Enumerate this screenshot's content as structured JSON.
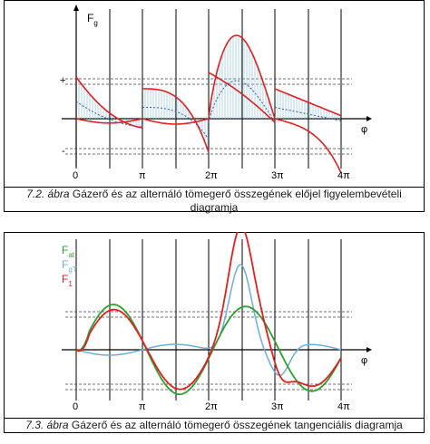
{
  "figures": [
    {
      "caption_number": "7.2.",
      "caption_word": "ábra",
      "caption_text": "Gázerő és az alternáló tömegerő összegének előjel figyelembevételi diagramja",
      "y_label_main": "F",
      "y_label_sub": "g",
      "plus_sign": "+",
      "minus_sign": "-",
      "x_label": "φ",
      "ticks": [
        "0",
        "π",
        "2π",
        "3π",
        "4π"
      ]
    },
    {
      "caption_number": "7.3.",
      "caption_word": "ábra",
      "caption_text": "Gázerő és az alternáló tömegerő összegének tangenciális diagramja",
      "x_label": "φ",
      "ticks": [
        "0",
        "π",
        "2π",
        "3π",
        "4π"
      ],
      "legend": [
        {
          "main": "F",
          "sub": "at",
          "color": "#2ca02c"
        },
        {
          "main": "F",
          "sub": "gT",
          "color": "#6baed6"
        },
        {
          "main": "F",
          "sub": "1",
          "color": "#e02020"
        }
      ]
    }
  ],
  "colors": {
    "red": "#e02020",
    "green": "#2ca02c",
    "blue": "#6baed6",
    "hatch": "#9ecae1",
    "axis": "#000000"
  }
}
